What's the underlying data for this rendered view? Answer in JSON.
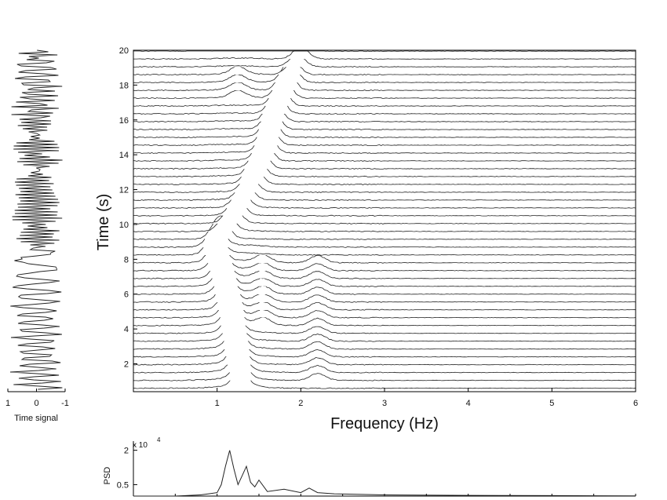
{
  "chart_data": [
    {
      "panel": "time-signal",
      "type": "line",
      "xlabel": "Time signal",
      "xticks": [
        "1",
        "0",
        "-1"
      ],
      "xlim": [
        1,
        -1
      ],
      "ylim": [
        0.4,
        20
      ],
      "orientation": "vertical"
    },
    {
      "panel": "waterfall",
      "type": "line",
      "xlabel": "Frequency (Hz)",
      "ylabel": "Time (s)",
      "xlim": [
        0,
        6
      ],
      "ylim": [
        0.4,
        20
      ],
      "xticks": [
        "1",
        "2",
        "3",
        "4",
        "5",
        "6"
      ],
      "yticks": [
        "2",
        "4",
        "6",
        "8",
        "10",
        "12",
        "14",
        "16",
        "18",
        "20"
      ],
      "trace_count": 44,
      "trace_spacing_s": 0.45,
      "peak_ridge": [
        {
          "time": 1.0,
          "frequency": 1.28
        },
        {
          "time": 3.0,
          "frequency": 1.22
        },
        {
          "time": 5.0,
          "frequency": 1.15
        },
        {
          "time": 7.0,
          "frequency": 1.05
        },
        {
          "time": 8.5,
          "frequency": 0.95
        },
        {
          "time": 10.0,
          "frequency": 1.18
        },
        {
          "time": 12.0,
          "frequency": 1.4
        },
        {
          "time": 14.0,
          "frequency": 1.58
        },
        {
          "time": 16.0,
          "frequency": 1.68
        },
        {
          "time": 18.0,
          "frequency": 1.85
        },
        {
          "time": 19.5,
          "frequency": 2.0
        }
      ],
      "secondary_ridges": [
        {
          "frequency": 1.0,
          "time_range": [
            8,
            9.5
          ]
        },
        {
          "frequency": 1.55,
          "time_range": [
            4,
            8
          ]
        },
        {
          "frequency": 2.2,
          "time_range": [
            1,
            8
          ]
        },
        {
          "frequency": 1.25,
          "time_range": [
            17,
            19
          ]
        }
      ]
    },
    {
      "panel": "psd",
      "type": "line",
      "ylabel": "PSD",
      "yscale_label": "x 10",
      "yscale_exponent": "4",
      "yticks": [
        "2",
        "0.5"
      ],
      "ylim": [
        0,
        2.4
      ],
      "xlim": [
        0,
        6
      ],
      "x": [
        0.0,
        0.5,
        0.8,
        0.9,
        1.0,
        1.05,
        1.1,
        1.15,
        1.2,
        1.25,
        1.3,
        1.35,
        1.4,
        1.45,
        1.5,
        1.6,
        1.8,
        2.0,
        2.1,
        2.2,
        2.4,
        3.0,
        4.0,
        5.0,
        6.0
      ],
      "y": [
        0.0,
        0.0,
        0.05,
        0.1,
        0.15,
        0.5,
        1.3,
        2.0,
        1.2,
        0.5,
        0.9,
        1.3,
        0.6,
        0.4,
        0.7,
        0.2,
        0.3,
        0.15,
        0.35,
        0.15,
        0.1,
        0.05,
        0.03,
        0.02,
        0.01
      ]
    }
  ]
}
